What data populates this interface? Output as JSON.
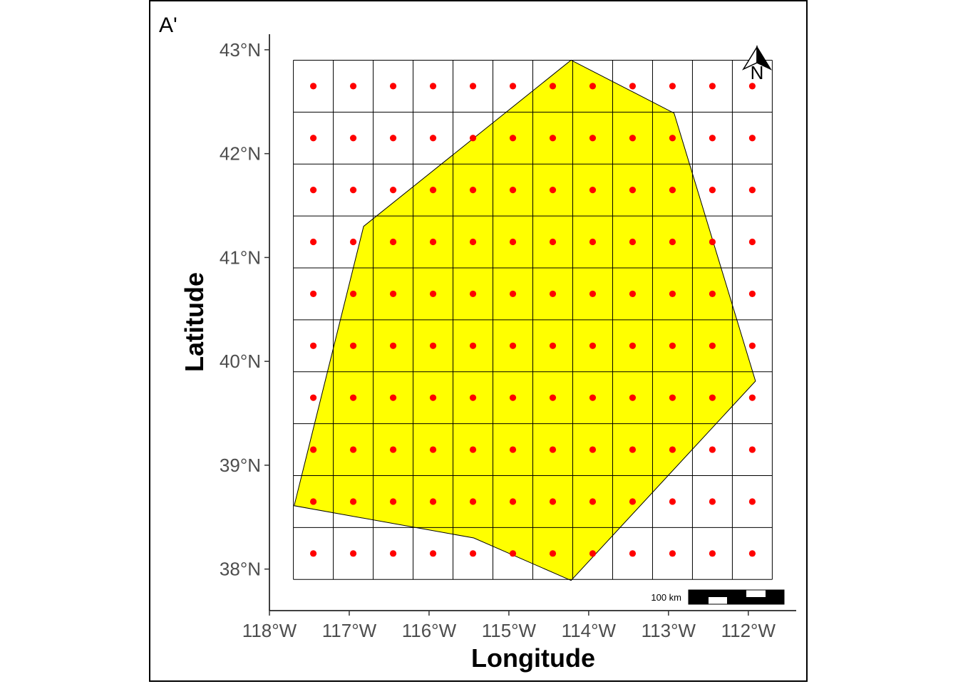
{
  "panel_label": "A'",
  "x_axis": {
    "title": "Longitude",
    "range": [
      -118.0,
      -111.4
    ],
    "ticks": [
      {
        "value": -118,
        "label": "118°W"
      },
      {
        "value": -117,
        "label": "117°W"
      },
      {
        "value": -116,
        "label": "116°W"
      },
      {
        "value": -115,
        "label": "115°W"
      },
      {
        "value": -114,
        "label": "114°W"
      },
      {
        "value": -113,
        "label": "113°W"
      },
      {
        "value": -112,
        "label": "112°W"
      }
    ]
  },
  "y_axis": {
    "title": "Latitude",
    "range": [
      37.6,
      43.15
    ],
    "ticks": [
      {
        "value": 38,
        "label": "38°N"
      },
      {
        "value": 39,
        "label": "39°N"
      },
      {
        "value": 40,
        "label": "40°N"
      },
      {
        "value": 41,
        "label": "41°N"
      },
      {
        "value": 42,
        "label": "42°N"
      },
      {
        "value": 43,
        "label": "43°N"
      }
    ]
  },
  "map_data": {
    "grid": {
      "lon_min": -117.7,
      "lon_max": -111.7,
      "lat_min": 37.9,
      "lat_max": 42.9,
      "cols": 12,
      "rows": 10,
      "line_color": "#000000"
    },
    "points_color": "#ff0000",
    "study_area": {
      "fill": "#ffff00",
      "stroke": "#000000",
      "vertices": [
        [
          -114.22,
          42.9
        ],
        [
          -112.93,
          42.39
        ],
        [
          -111.91,
          39.81
        ],
        [
          -114.22,
          37.89
        ],
        [
          -115.44,
          38.3
        ],
        [
          -117.69,
          38.61
        ],
        [
          -116.82,
          41.3
        ]
      ]
    }
  },
  "north_arrow": {
    "label": "N"
  },
  "scale_bar": {
    "label": "100 km"
  }
}
